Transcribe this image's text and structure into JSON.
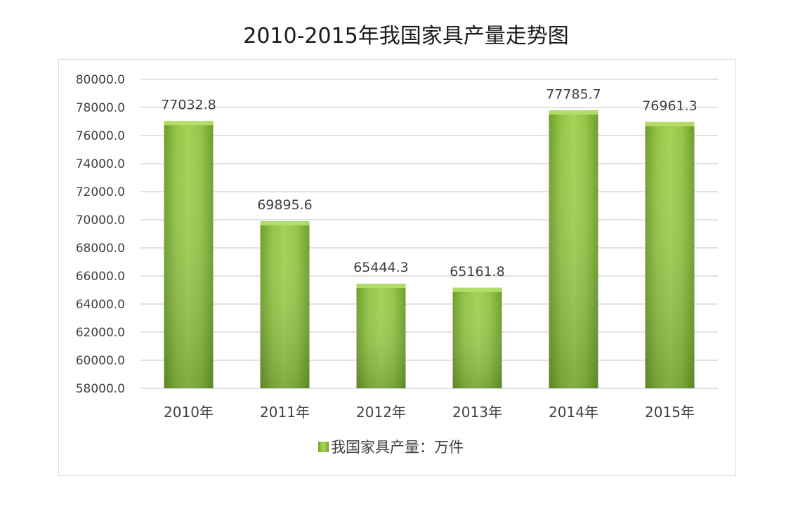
{
  "chart_data": {
    "type": "bar",
    "title": "2010-2015年我国家具产量走势图",
    "categories": [
      "2010年",
      "2011年",
      "2012年",
      "2013年",
      "2014年",
      "2015年"
    ],
    "series": [
      {
        "name": "我国家具产量：万件",
        "values": [
          77032.8,
          69895.6,
          65444.3,
          65161.8,
          77785.7,
          76961.3
        ],
        "labels": [
          "77032.8",
          "69895.6",
          "65444.3",
          "65161.8",
          "77785.7",
          "76961.3"
        ]
      }
    ],
    "ylim": [
      58000,
      80000
    ],
    "yticks": [
      "58000.0",
      "60000.0",
      "62000.0",
      "64000.0",
      "66000.0",
      "68000.0",
      "70000.0",
      "72000.0",
      "74000.0",
      "76000.0",
      "78000.0",
      "80000.0"
    ],
    "grid": true,
    "legend": "bottom",
    "colors": {
      "bar": "#8fc23f",
      "bar_dark": "#6e9a2a",
      "grid": "#d9d9d9"
    }
  }
}
